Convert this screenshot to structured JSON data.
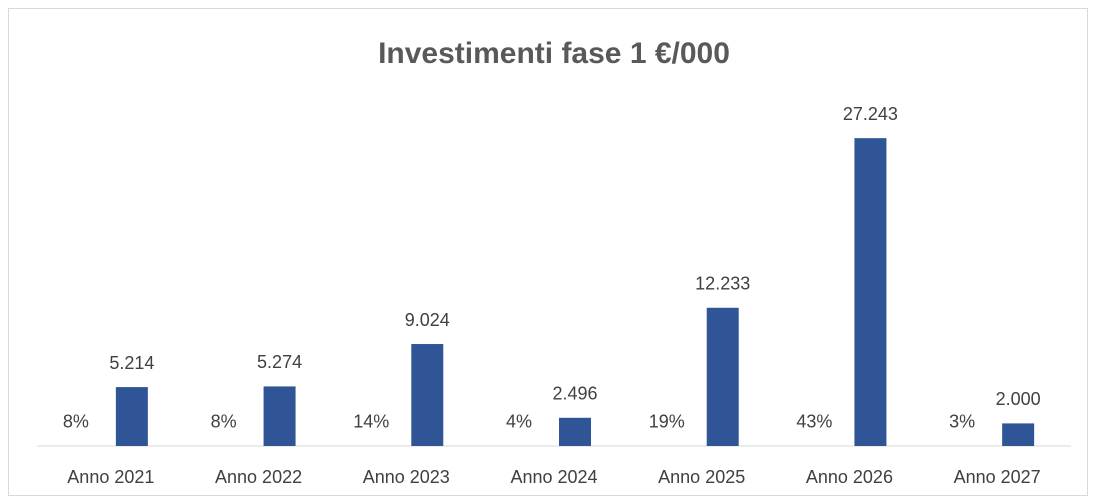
{
  "chart_data": {
    "type": "bar",
    "title": "Investimenti fase 1 €/000",
    "categories": [
      "Anno 2021",
      "Anno 2022",
      "Anno 2023",
      "Anno 2024",
      "Anno 2025",
      "Anno 2026",
      "Anno 2027"
    ],
    "series": [
      {
        "color": "#2f5597",
        "values": [
          0.08,
          0.08,
          0.14,
          0.04,
          0.19,
          0.43,
          0.03
        ],
        "value_labels": [
          "8%",
          "8%",
          "14%",
          "4%",
          "19%",
          "43%",
          "3%"
        ]
      },
      {
        "color": "#2f5597",
        "values": [
          5214,
          5274,
          9024,
          2496,
          12233,
          27243,
          2000
        ],
        "value_labels": [
          "5.214",
          "5.274",
          "9.024",
          "2.496",
          "12.233",
          "27.243",
          "2.000"
        ]
      }
    ],
    "ylim": [
      0,
      30000
    ]
  }
}
